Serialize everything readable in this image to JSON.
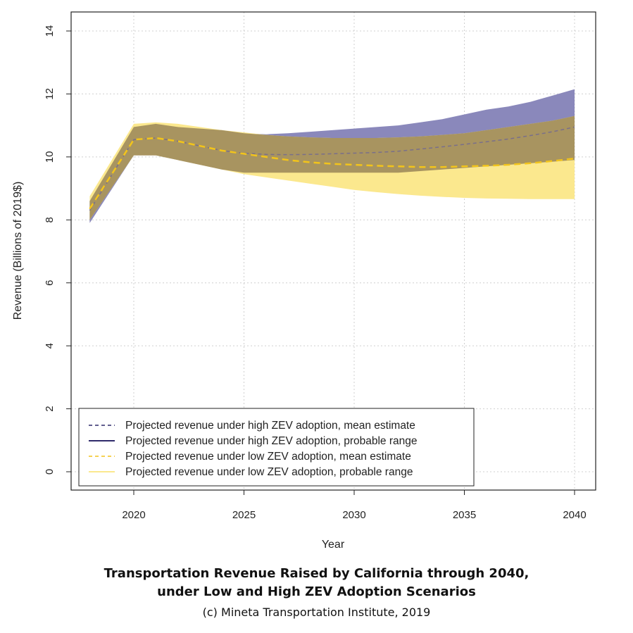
{
  "chart_data": {
    "type": "area",
    "xlabel": "Year",
    "ylabel": "Revenue (Billions of 2019$)",
    "xlim": [
      2017.7,
      2040.5
    ],
    "ylim": [
      -0.6,
      14.6
    ],
    "x_ticks": [
      2020,
      2025,
      2030,
      2035,
      2040
    ],
    "y_ticks": [
      0,
      2,
      4,
      6,
      8,
      10,
      12,
      14
    ],
    "grid": true,
    "legend_position": "bottom-left",
    "x": [
      2018,
      2020,
      2021,
      2022,
      2023,
      2024,
      2025,
      2026,
      2027,
      2028,
      2029,
      2030,
      2031,
      2032,
      2033,
      2034,
      2035,
      2036,
      2037,
      2038,
      2039,
      2040
    ],
    "series": [
      {
        "name": "Projected revenue under high ZEV adoption, probable range",
        "kind": "band",
        "color": "#8a88bb",
        "lower": [
          7.9,
          10.05,
          10.05,
          9.9,
          9.75,
          9.6,
          9.5,
          9.5,
          9.5,
          9.5,
          9.5,
          9.5,
          9.5,
          9.5,
          9.55,
          9.6,
          9.65,
          9.7,
          9.75,
          9.8,
          9.85,
          9.9
        ],
        "upper": [
          8.6,
          10.95,
          11.05,
          10.95,
          10.9,
          10.85,
          10.75,
          10.72,
          10.75,
          10.8,
          10.85,
          10.9,
          10.95,
          11.0,
          11.1,
          11.2,
          11.35,
          11.5,
          11.6,
          11.75,
          11.95,
          12.15
        ]
      },
      {
        "name": "Projected revenue under low ZEV adoption, probable range",
        "kind": "band",
        "color": "#fbe88e",
        "lower": [
          8.0,
          10.05,
          10.05,
          9.9,
          9.75,
          9.6,
          9.45,
          9.35,
          9.25,
          9.15,
          9.05,
          8.95,
          8.88,
          8.82,
          8.77,
          8.73,
          8.7,
          8.68,
          8.67,
          8.66,
          8.66,
          8.66
        ],
        "upper": [
          8.75,
          11.05,
          11.1,
          11.05,
          10.95,
          10.85,
          10.78,
          10.7,
          10.65,
          10.62,
          10.6,
          10.6,
          10.6,
          10.62,
          10.65,
          10.7,
          10.75,
          10.85,
          10.95,
          11.05,
          11.15,
          11.3
        ]
      },
      {
        "name": "Projected revenue under high ZEV adoption, mean estimate",
        "kind": "line",
        "dashed": true,
        "color": "#7a6f8a",
        "values": [
          8.3,
          10.55,
          10.6,
          10.5,
          10.35,
          10.2,
          10.12,
          10.08,
          10.07,
          10.08,
          10.1,
          10.12,
          10.14,
          10.18,
          10.25,
          10.32,
          10.4,
          10.48,
          10.57,
          10.68,
          10.8,
          10.95
        ]
      },
      {
        "name": "Projected revenue under low ZEV adoption, mean estimate",
        "kind": "line",
        "dashed": true,
        "color": "#f2c41b",
        "values": [
          8.35,
          10.55,
          10.6,
          10.5,
          10.35,
          10.2,
          10.1,
          10.0,
          9.9,
          9.83,
          9.78,
          9.75,
          9.72,
          9.7,
          9.68,
          9.68,
          9.7,
          9.72,
          9.75,
          9.8,
          9.87,
          9.95
        ]
      }
    ],
    "legend": [
      {
        "label": "Projected revenue under high ZEV adoption, mean estimate",
        "style": "dashed",
        "color": "#2e2a6a"
      },
      {
        "label": "Projected revenue under high ZEV adoption, probable range",
        "style": "solid",
        "color": "#2e2a6a"
      },
      {
        "label": "Projected revenue under low ZEV adoption, mean estimate",
        "style": "dashed",
        "color": "#f2c41b"
      },
      {
        "label": "Projected revenue under low ZEV adoption, probable range",
        "style": "solid",
        "color": "#fbe88e"
      }
    ]
  },
  "caption": {
    "title_line1": "Transportation Revenue Raised by California through 2040,",
    "title_line2": "under Low and High ZEV Adoption Scenarios",
    "credit": "(c) Mineta Transportation Institute, 2019"
  },
  "colors": {
    "overlap": "#a89460",
    "grid": "#cfcfcf"
  }
}
